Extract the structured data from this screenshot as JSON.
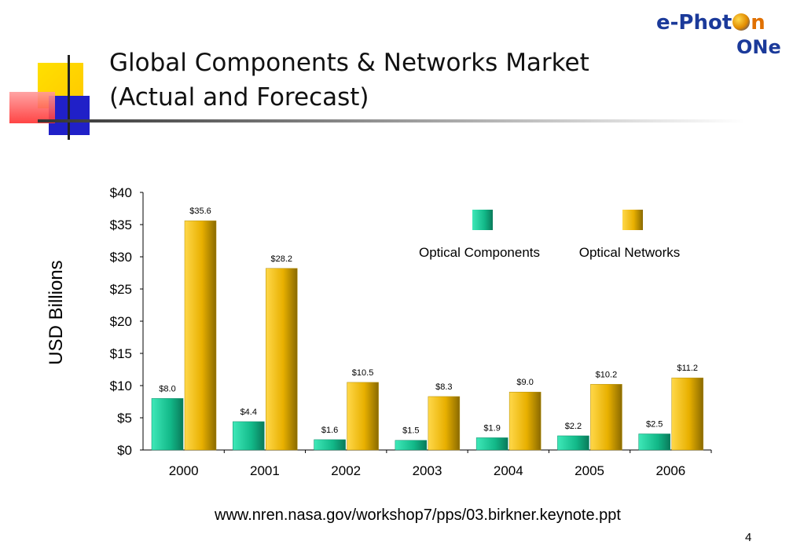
{
  "slide": {
    "title_line1": "Global Components & Networks Market",
    "title_line2": "(Actual and Forecast)",
    "logo_line1": "e-Phot",
    "logo_line1_end": "n",
    "logo_line2": "ONe",
    "source": "www.nren.nasa.gov/workshop7/pps/03.birkner.keynote.ppt",
    "page_number": "4"
  },
  "colors": {
    "optical_components": "#1fd0a0",
    "optical_networks": "#f0c000",
    "deco_yellow": "#ffd700",
    "deco_blue": "#2020c8",
    "deco_red": "#ff4040"
  },
  "chart_data": {
    "type": "bar",
    "categories": [
      "2000",
      "2001",
      "2002",
      "2003",
      "2004",
      "2005",
      "2006"
    ],
    "series": [
      {
        "name": "Optical Components",
        "values": [
          8.0,
          4.4,
          1.6,
          1.5,
          1.9,
          2.2,
          2.5
        ],
        "labels": [
          "$8.0",
          "$4.4",
          "$1.6",
          "$1.5",
          "$1.9",
          "$2.2",
          "$2.5"
        ]
      },
      {
        "name": "Optical Networks",
        "values": [
          35.6,
          28.2,
          10.5,
          8.3,
          9.0,
          10.2,
          11.2
        ],
        "labels": [
          "$35.6",
          "$28.2",
          "$10.5",
          "$8.3",
          "$9.0",
          "$10.2",
          "$11.2"
        ]
      }
    ],
    "ylabel": "USD Billions",
    "ylim": [
      0,
      40
    ],
    "yticks": [
      0,
      5,
      10,
      15,
      20,
      25,
      30,
      35,
      40
    ],
    "ytick_labels": [
      "$0",
      "$5",
      "$10",
      "$15",
      "$20",
      "$25",
      "$30",
      "$35",
      "$40"
    ],
    "grid": false,
    "legend_position": "top-right"
  }
}
